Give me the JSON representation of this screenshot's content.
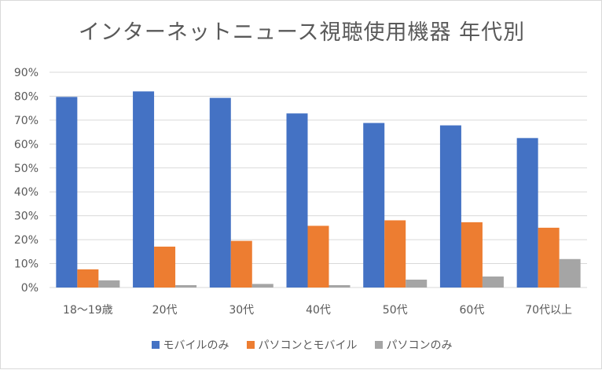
{
  "chart_data": {
    "type": "bar",
    "title": "インターネットニュース視聴使用機器 年代別",
    "categories": [
      "18〜19歳",
      "20代",
      "30代",
      "40代",
      "50代",
      "60代",
      "70代以上"
    ],
    "y_ticks": [
      "0%",
      "10%",
      "20%",
      "30%",
      "40%",
      "50%",
      "60%",
      "70%",
      "80%",
      "90%"
    ],
    "ylim": [
      0,
      90
    ],
    "grid": true,
    "legend_position": "bottom",
    "series": [
      {
        "name": "モバイルのみ",
        "color": "#4472c4",
        "values": [
          79.7,
          82.0,
          79.3,
          72.8,
          68.8,
          67.8,
          62.5
        ]
      },
      {
        "name": "パソコンとモバイル",
        "color": "#ed7d31",
        "values": [
          7.6,
          17.1,
          19.5,
          25.8,
          28.1,
          27.3,
          25.0
        ]
      },
      {
        "name": "パソコンのみ",
        "color": "#a5a5a5",
        "values": [
          3.0,
          1.0,
          1.5,
          1.0,
          3.3,
          4.6,
          11.9
        ]
      }
    ]
  }
}
